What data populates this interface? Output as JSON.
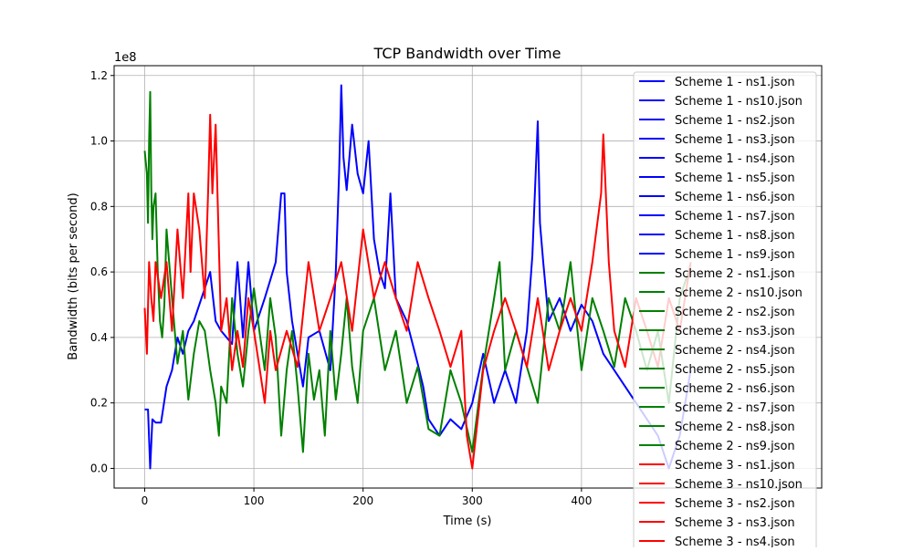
{
  "chart_data": {
    "type": "line",
    "title": "TCP Bandwidth over Time",
    "xlabel": "Time (s)",
    "ylabel": "Bandwidth (bits per second)",
    "y_offset_label": "1e8",
    "xlim": [
      -28,
      620
    ],
    "ylim": [
      -0.06,
      1.23
    ],
    "x_ticks": [
      0,
      100,
      200,
      300,
      400
    ],
    "x_tick_labels": [
      "0",
      "100",
      "200",
      "300",
      "400"
    ],
    "y_ticks": [
      0.0,
      0.2,
      0.4,
      0.6,
      0.8,
      1.0,
      1.2
    ],
    "y_tick_labels": [
      "0.0",
      "0.2",
      "0.4",
      "0.6",
      "0.8",
      "1.0",
      "1.2"
    ],
    "grid": true,
    "legend_position": "upper right",
    "colors": {
      "Scheme 1": "#0000ff",
      "Scheme 2": "#008000",
      "Scheme 3": "#ff0000"
    },
    "legend": [
      {
        "label": "Scheme 1 - ns1.json",
        "color": "#0000ff"
      },
      {
        "label": "Scheme 1 - ns10.json",
        "color": "#0000ff"
      },
      {
        "label": "Scheme 1 - ns2.json",
        "color": "#0000ff"
      },
      {
        "label": "Scheme 1 - ns3.json",
        "color": "#0000ff"
      },
      {
        "label": "Scheme 1 - ns4.json",
        "color": "#0000ff"
      },
      {
        "label": "Scheme 1 - ns5.json",
        "color": "#0000ff"
      },
      {
        "label": "Scheme 1 - ns6.json",
        "color": "#0000ff"
      },
      {
        "label": "Scheme 1 - ns7.json",
        "color": "#0000ff"
      },
      {
        "label": "Scheme 1 - ns8.json",
        "color": "#0000ff"
      },
      {
        "label": "Scheme 1 - ns9.json",
        "color": "#0000ff"
      },
      {
        "label": "Scheme 2 - ns1.json",
        "color": "#008000"
      },
      {
        "label": "Scheme 2 - ns10.json",
        "color": "#008000"
      },
      {
        "label": "Scheme 2 - ns2.json",
        "color": "#008000"
      },
      {
        "label": "Scheme 2 - ns3.json",
        "color": "#008000"
      },
      {
        "label": "Scheme 2 - ns4.json",
        "color": "#008000"
      },
      {
        "label": "Scheme 2 - ns5.json",
        "color": "#008000"
      },
      {
        "label": "Scheme 2 - ns6.json",
        "color": "#008000"
      },
      {
        "label": "Scheme 2 - ns7.json",
        "color": "#008000"
      },
      {
        "label": "Scheme 2 - ns8.json",
        "color": "#008000"
      },
      {
        "label": "Scheme 2 - ns9.json",
        "color": "#008000"
      },
      {
        "label": "Scheme 3 - ns1.json",
        "color": "#ff0000"
      },
      {
        "label": "Scheme 3 - ns10.json",
        "color": "#ff0000"
      },
      {
        "label": "Scheme 3 - ns2.json",
        "color": "#ff0000"
      },
      {
        "label": "Scheme 3 - ns3.json",
        "color": "#ff0000"
      },
      {
        "label": "Scheme 3 - ns4.json",
        "color": "#ff0000"
      }
    ],
    "series": [
      {
        "name": "Scheme 1 - ns1.json",
        "color": "#0000ff",
        "x": [
          0,
          3,
          5,
          7,
          10,
          15,
          20,
          25,
          30,
          35,
          40,
          45,
          50,
          55,
          60,
          65,
          70,
          75,
          80,
          85,
          90,
          95,
          100,
          110,
          120,
          125,
          128,
          130,
          135,
          140,
          145,
          150,
          160,
          170,
          175,
          178,
          180,
          182,
          185,
          190,
          195,
          200,
          205,
          210,
          215,
          220,
          225,
          230,
          240,
          250,
          255,
          260,
          270,
          280,
          290,
          300,
          310,
          320,
          330,
          340,
          350,
          355,
          358,
          360,
          362,
          365,
          370,
          380,
          390,
          400,
          410,
          420,
          430,
          440,
          450,
          460,
          470,
          480,
          485,
          490,
          495,
          500
        ],
        "y": [
          0.18,
          0.18,
          0.0,
          0.15,
          0.14,
          0.14,
          0.25,
          0.3,
          0.4,
          0.35,
          0.42,
          0.45,
          0.5,
          0.55,
          0.6,
          0.45,
          0.42,
          0.4,
          0.38,
          0.63,
          0.4,
          0.63,
          0.42,
          0.52,
          0.63,
          0.84,
          0.84,
          0.6,
          0.45,
          0.35,
          0.25,
          0.4,
          0.42,
          0.3,
          0.6,
          0.9,
          1.17,
          0.95,
          0.85,
          1.05,
          0.9,
          0.84,
          1.0,
          0.7,
          0.6,
          0.55,
          0.84,
          0.52,
          0.45,
          0.32,
          0.25,
          0.15,
          0.1,
          0.15,
          0.12,
          0.2,
          0.35,
          0.2,
          0.3,
          0.2,
          0.42,
          0.65,
          0.9,
          1.06,
          0.75,
          0.63,
          0.45,
          0.52,
          0.42,
          0.5,
          0.45,
          0.35,
          0.3,
          0.25,
          0.2,
          0.15,
          0.1,
          0.0,
          0.05,
          0.1,
          0.2,
          0.3
        ]
      },
      {
        "name": "Scheme 2 - ns1.json",
        "color": "#008000",
        "x": [
          0,
          2,
          3,
          4,
          5,
          6,
          7,
          8,
          10,
          12,
          14,
          16,
          18,
          20,
          25,
          30,
          35,
          40,
          45,
          50,
          55,
          60,
          65,
          68,
          70,
          75,
          80,
          85,
          90,
          95,
          100,
          105,
          110,
          115,
          120,
          125,
          130,
          135,
          140,
          145,
          150,
          155,
          160,
          165,
          170,
          175,
          180,
          185,
          190,
          195,
          200,
          210,
          220,
          230,
          240,
          250,
          260,
          270,
          280,
          290,
          300,
          310,
          320,
          325,
          330,
          340,
          350,
          360,
          370,
          380,
          390,
          400,
          410,
          420,
          430,
          440,
          450,
          460,
          470,
          480,
          490,
          500
        ],
        "y": [
          0.97,
          0.9,
          0.75,
          1.0,
          1.15,
          0.85,
          0.7,
          0.8,
          0.84,
          0.6,
          0.45,
          0.4,
          0.5,
          0.73,
          0.52,
          0.32,
          0.42,
          0.21,
          0.35,
          0.45,
          0.42,
          0.3,
          0.2,
          0.1,
          0.25,
          0.2,
          0.52,
          0.35,
          0.25,
          0.42,
          0.55,
          0.42,
          0.3,
          0.52,
          0.4,
          0.1,
          0.3,
          0.42,
          0.25,
          0.05,
          0.35,
          0.21,
          0.3,
          0.1,
          0.42,
          0.21,
          0.35,
          0.52,
          0.31,
          0.2,
          0.42,
          0.52,
          0.3,
          0.42,
          0.2,
          0.31,
          0.12,
          0.1,
          0.3,
          0.2,
          0.05,
          0.31,
          0.52,
          0.63,
          0.3,
          0.42,
          0.31,
          0.2,
          0.52,
          0.42,
          0.63,
          0.3,
          0.52,
          0.42,
          0.31,
          0.52,
          0.42,
          0.3,
          0.42,
          0.2,
          0.52,
          0.62
        ]
      },
      {
        "name": "Scheme 3 - ns1.json",
        "color": "#ff0000",
        "x": [
          0,
          2,
          4,
          6,
          8,
          10,
          15,
          20,
          25,
          30,
          35,
          40,
          42,
          45,
          50,
          55,
          58,
          60,
          62,
          65,
          70,
          75,
          80,
          85,
          90,
          95,
          100,
          105,
          110,
          115,
          120,
          130,
          140,
          150,
          160,
          170,
          180,
          190,
          200,
          210,
          220,
          230,
          240,
          250,
          260,
          270,
          280,
          290,
          295,
          300,
          310,
          320,
          330,
          340,
          350,
          360,
          370,
          380,
          390,
          400,
          410,
          418,
          420,
          425,
          430,
          440,
          450,
          460,
          470,
          480,
          490,
          500
        ],
        "y": [
          0.49,
          0.35,
          0.63,
          0.52,
          0.45,
          0.63,
          0.52,
          0.63,
          0.42,
          0.73,
          0.52,
          0.84,
          0.6,
          0.84,
          0.73,
          0.52,
          0.84,
          1.08,
          0.84,
          1.05,
          0.42,
          0.52,
          0.3,
          0.42,
          0.31,
          0.52,
          0.42,
          0.31,
          0.2,
          0.42,
          0.3,
          0.42,
          0.31,
          0.63,
          0.42,
          0.52,
          0.63,
          0.42,
          0.73,
          0.52,
          0.63,
          0.52,
          0.42,
          0.63,
          0.52,
          0.42,
          0.31,
          0.42,
          0.1,
          0.0,
          0.3,
          0.42,
          0.52,
          0.42,
          0.31,
          0.52,
          0.3,
          0.42,
          0.52,
          0.42,
          0.63,
          0.84,
          1.02,
          0.63,
          0.42,
          0.31,
          0.52,
          0.42,
          0.31,
          0.52,
          0.42,
          0.63
        ]
      }
    ]
  }
}
